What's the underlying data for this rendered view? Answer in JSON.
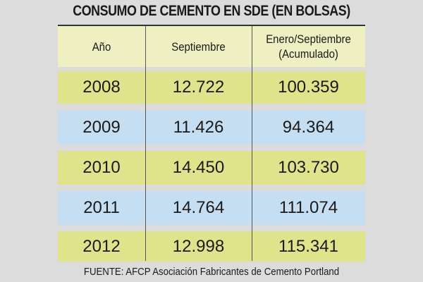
{
  "chart_data": {
    "type": "table",
    "title": "CONSUMO DE CEMENTO EN SDE (EN BOLSAS)",
    "columns": [
      "Año",
      "Septiembre",
      "Enero/Septiembre",
      "(Acumulado)"
    ],
    "rows": [
      {
        "year": "2008",
        "sep": "12.722",
        "acc": "100.359"
      },
      {
        "year": "2009",
        "sep": "11.426",
        "acc": "94.364"
      },
      {
        "year": "2010",
        "sep": "14.450",
        "acc": "103.730"
      },
      {
        "year": "2011",
        "sep": "14.764",
        "acc": "111.074"
      },
      {
        "year": "2012",
        "sep": "12.998",
        "acc": "115.341"
      }
    ],
    "source": "FUENTE: AFCP Asociación Fabricantes de Cemento Portland"
  },
  "colors": {
    "header": "#eef0c2",
    "row_yellow": "#dfe48c",
    "row_blue": "#c6def2",
    "background": "#dcdcdc"
  }
}
